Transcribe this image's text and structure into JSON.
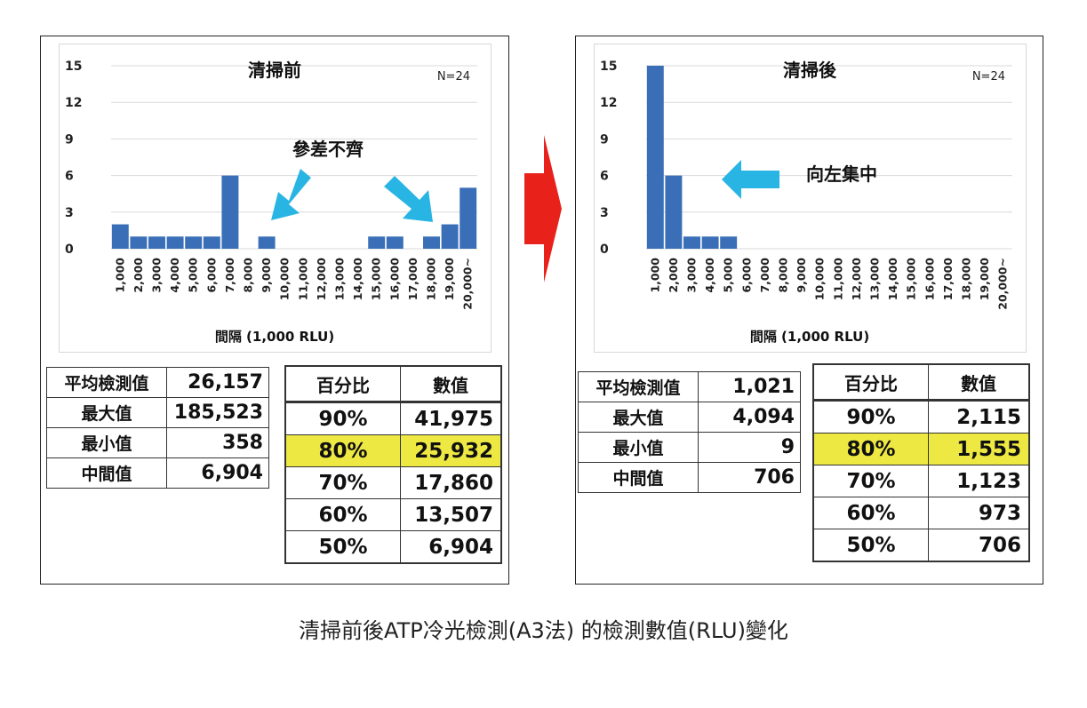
{
  "caption": "清掃前後ATP冷光檢測(A3法) 的檢測數值(RLU)變化",
  "colors": {
    "bar": "#3a6fb8",
    "cyan_arrow": "#29b5e3",
    "red_arrow": "#e8221b",
    "highlight": "#eee843"
  },
  "chart_data": [
    {
      "type": "bar",
      "title": "清掃前",
      "note": "N=24",
      "annotation": "參差不齊",
      "xlabel": "間隔 (1,000 RLU)",
      "ylabel": "",
      "ylim": [
        0,
        15
      ],
      "yticks": [
        "15",
        "12",
        "9",
        "6",
        "3",
        "0"
      ],
      "categories": [
        "1,000",
        "2,000",
        "3,000",
        "4,000",
        "5,000",
        "6,000",
        "7,000",
        "8,000",
        "9,000",
        "10,000",
        "11,000",
        "12,000",
        "13,000",
        "14,000",
        "15,000",
        "16,000",
        "17,000",
        "18,000",
        "19,000",
        "20,000~"
      ],
      "values": [
        2,
        1,
        1,
        1,
        1,
        1,
        6,
        0,
        1,
        0,
        0,
        0,
        0,
        0,
        1,
        1,
        0,
        1,
        2,
        5
      ]
    },
    {
      "type": "bar",
      "title": "清掃後",
      "note": "N=24",
      "annotation": "向左集中",
      "xlabel": "間隔 (1,000 RLU)",
      "ylabel": "",
      "ylim": [
        0,
        15
      ],
      "yticks": [
        "15",
        "12",
        "9",
        "6",
        "3",
        "0"
      ],
      "categories": [
        "1,000",
        "2,000",
        "3,000",
        "4,000",
        "5,000",
        "6,000",
        "7,000",
        "8,000",
        "9,000",
        "10,000",
        "11,000",
        "12,000",
        "13,000",
        "14,000",
        "15,000",
        "16,000",
        "17,000",
        "18,000",
        "19,000",
        "20,000~"
      ],
      "values": [
        15,
        6,
        1,
        1,
        1,
        0,
        0,
        0,
        0,
        0,
        0,
        0,
        0,
        0,
        0,
        0,
        0,
        0,
        0,
        0
      ]
    }
  ],
  "before": {
    "stats": [
      {
        "label": "平均檢測值",
        "value": "26,157"
      },
      {
        "label": "最大值",
        "value": "185,523"
      },
      {
        "label": "最小值",
        "value": "358"
      },
      {
        "label": "中間值",
        "value": "6,904"
      }
    ],
    "pct_header": {
      "pct": "百分比",
      "val": "數值"
    },
    "pct_rows": [
      {
        "pct": "90%",
        "val": "41,975"
      },
      {
        "pct": "80%",
        "val": "25,932"
      },
      {
        "pct": "70%",
        "val": "17,860"
      },
      {
        "pct": "60%",
        "val": "13,507"
      },
      {
        "pct": "50%",
        "val": "6,904"
      }
    ]
  },
  "after": {
    "stats": [
      {
        "label": "平均檢測值",
        "value": "1,021"
      },
      {
        "label": "最大值",
        "value": "4,094"
      },
      {
        "label": "最小值",
        "value": "9"
      },
      {
        "label": "中間值",
        "value": "706"
      }
    ],
    "pct_header": {
      "pct": "百分比",
      "val": "數值"
    },
    "pct_rows": [
      {
        "pct": "90%",
        "val": "2,115"
      },
      {
        "pct": "80%",
        "val": "1,555"
      },
      {
        "pct": "70%",
        "val": "1,123"
      },
      {
        "pct": "60%",
        "val": "973"
      },
      {
        "pct": "50%",
        "val": "706"
      }
    ]
  }
}
